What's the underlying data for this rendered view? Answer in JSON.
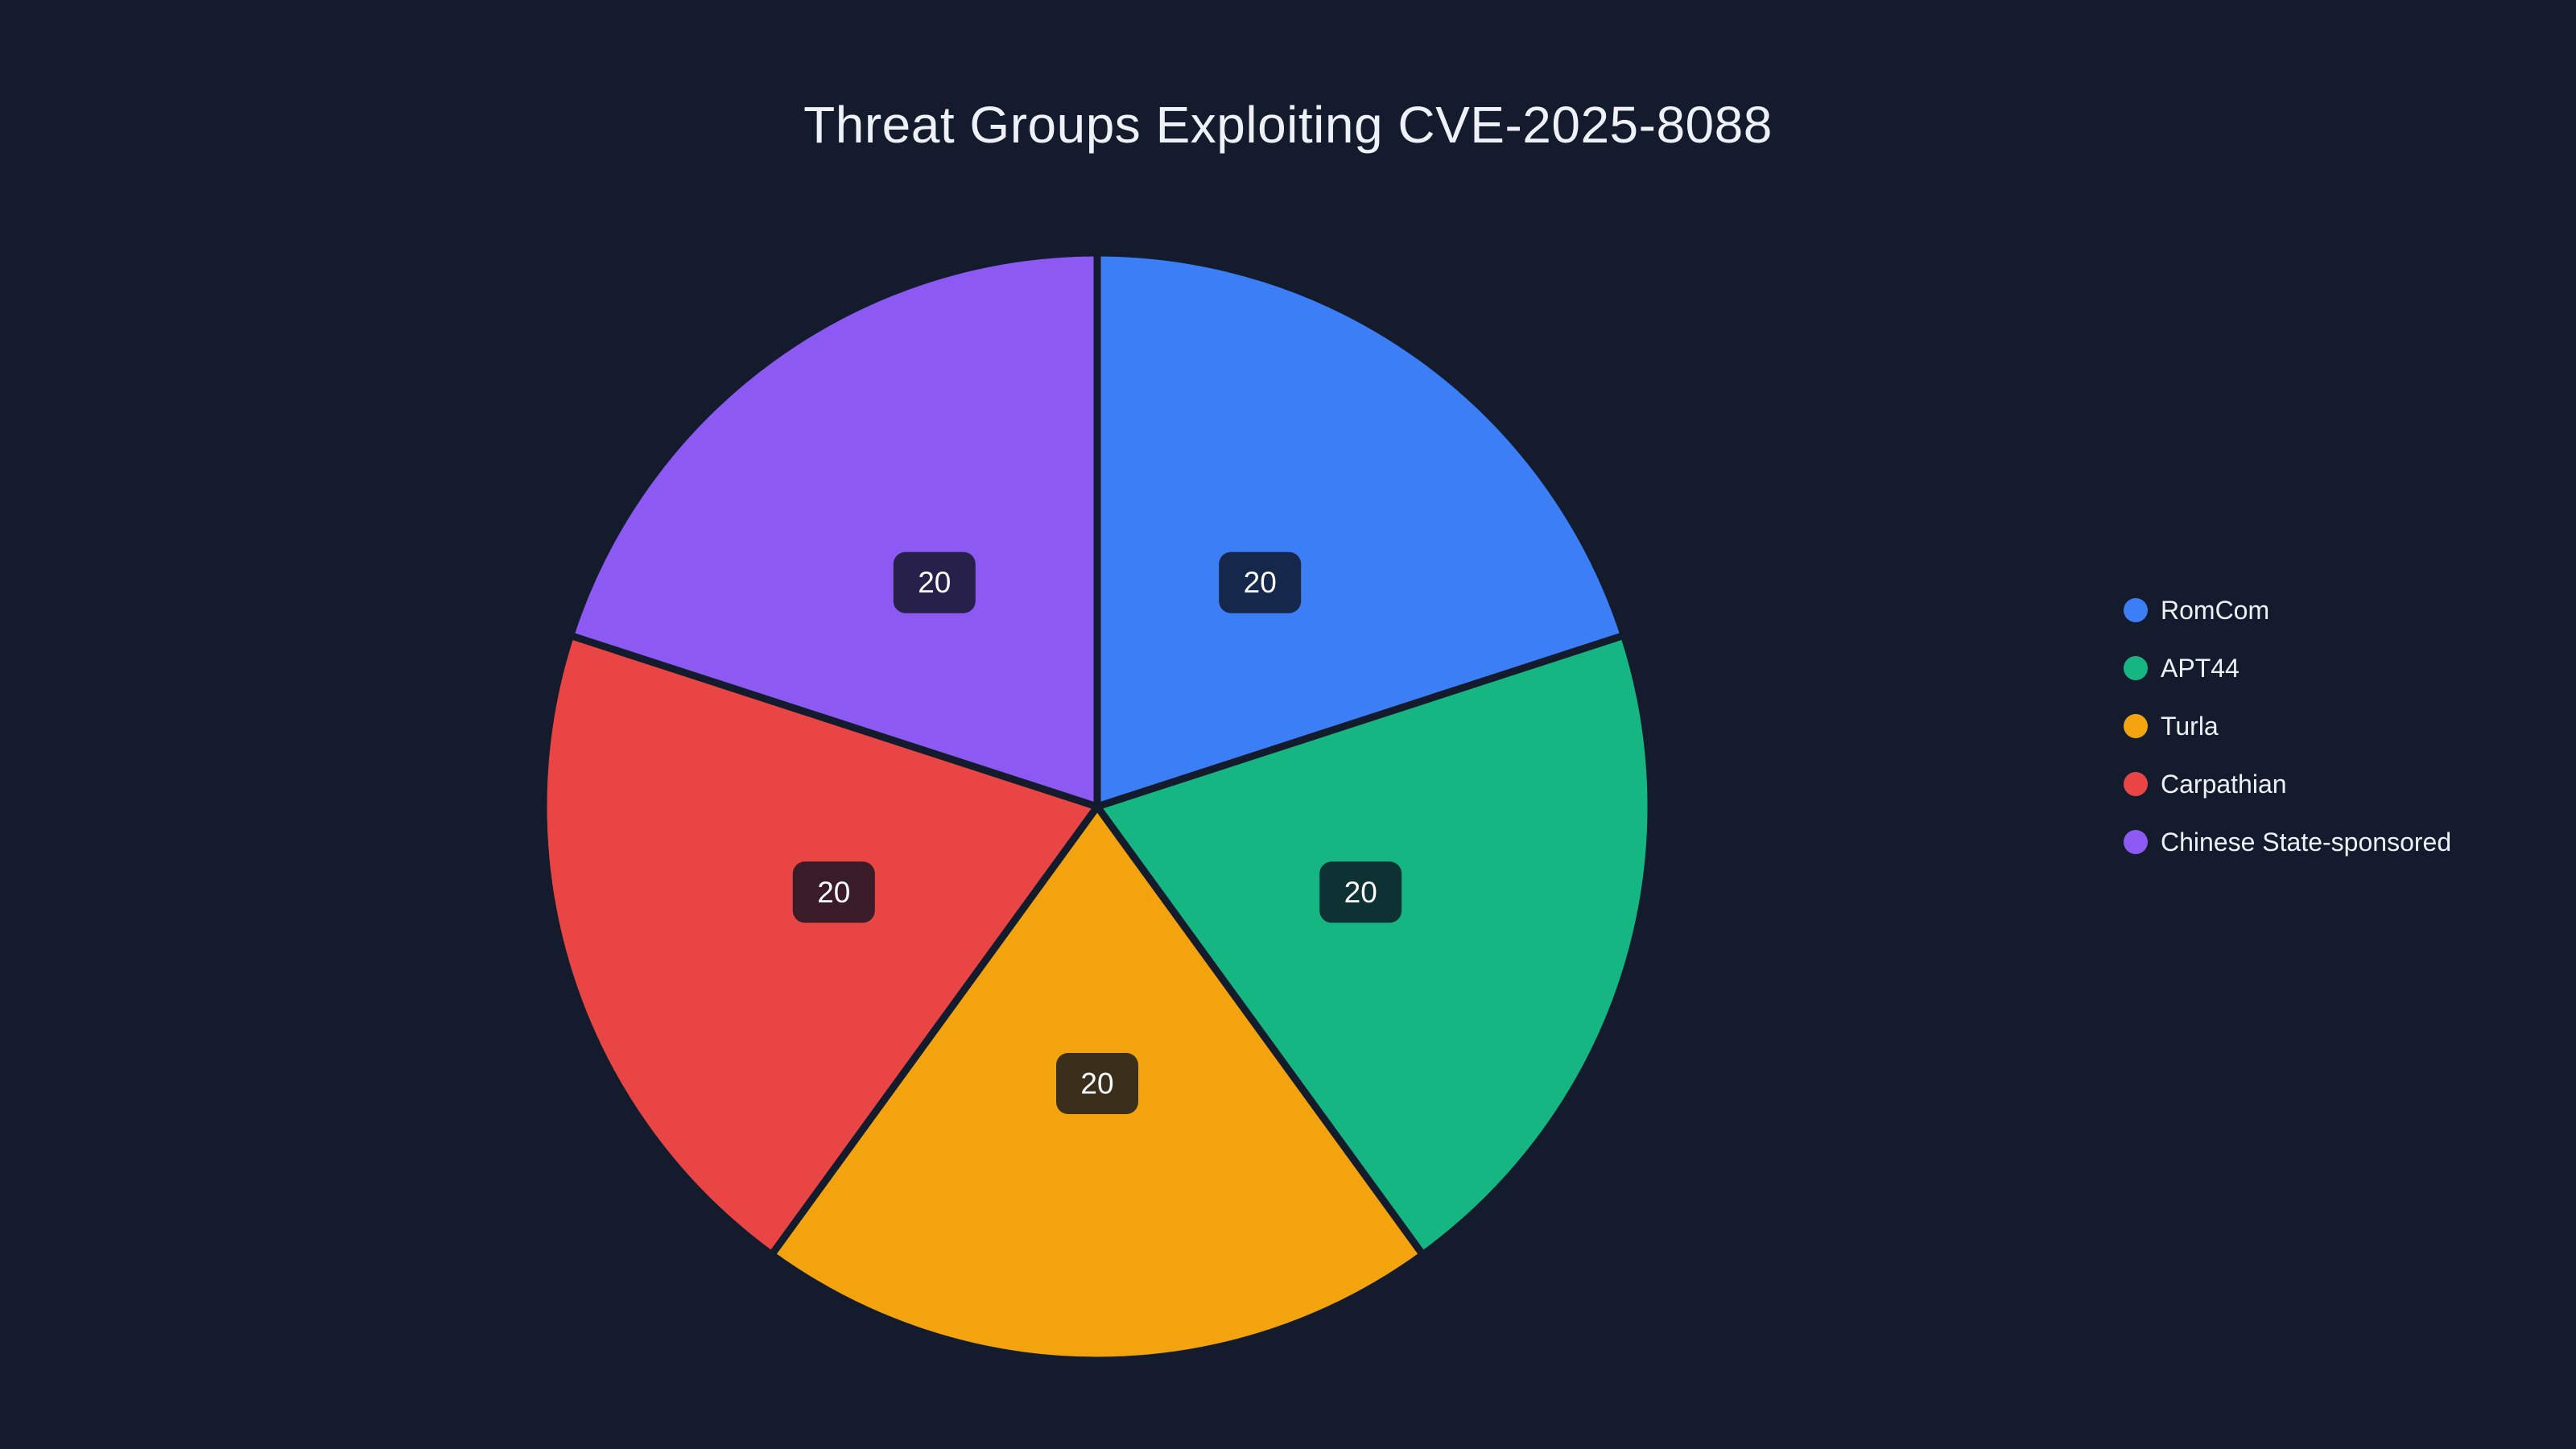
{
  "page": {
    "background": "#131b2c"
  },
  "chart_data": {
    "type": "pie",
    "title": "Threat Groups Exploiting CVE-2025-8088",
    "categories": [
      "RomCom",
      "APT44",
      "Turla",
      "Carpathian",
      "Chinese State-sponsored"
    ],
    "values": [
      20,
      20,
      20,
      20,
      20
    ],
    "data_labels": [
      "20",
      "20",
      "20",
      "20",
      "20"
    ],
    "colors": [
      "#3b7ef5",
      "#15b681",
      "#f2a30d",
      "#ea4545",
      "#8c59f2"
    ],
    "legend_position": "right",
    "start_angle_deg": 0,
    "direction": "clockwise",
    "slice_border_color": "#131b2c",
    "label_box_color": "rgba(13,18,32,0.8)",
    "label_text_color": "#ffffff"
  }
}
